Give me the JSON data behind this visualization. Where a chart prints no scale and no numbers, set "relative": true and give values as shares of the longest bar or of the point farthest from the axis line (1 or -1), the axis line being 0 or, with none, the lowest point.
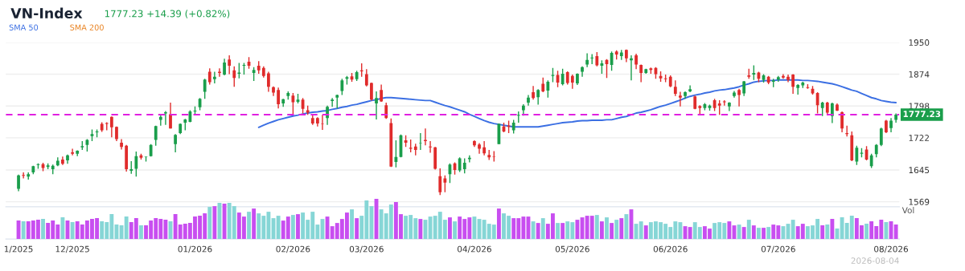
{
  "chart_data": [
    {
      "type": "candlestick",
      "title": "VN-Index",
      "subtitle": "1777.23 +14.39 (+0.82%)",
      "categories": [
        null,
        null,
        null,
        null,
        null,
        null,
        null,
        null,
        null,
        null,
        null,
        null,
        null,
        null,
        null,
        null,
        null,
        null,
        null,
        null,
        null,
        null,
        null,
        null,
        null,
        null,
        null,
        null,
        null,
        null,
        null,
        null,
        null,
        null,
        null,
        null,
        null,
        null,
        null,
        null,
        null,
        null,
        null,
        null,
        null,
        null,
        null,
        null,
        null,
        null,
        null,
        null,
        null,
        null,
        null,
        null,
        null,
        null,
        null,
        null,
        null,
        null,
        null,
        null,
        null,
        null,
        null,
        null,
        null,
        null,
        null,
        null,
        null,
        null,
        null,
        null,
        null,
        null,
        null,
        null,
        null,
        null,
        null,
        null,
        null,
        null,
        null,
        null,
        null,
        null,
        null,
        null,
        null,
        null,
        null,
        null,
        null,
        null,
        null,
        null,
        null,
        null,
        null,
        null,
        null,
        null,
        null,
        null,
        null,
        null,
        null,
        null,
        null,
        null,
        null,
        null,
        null,
        null,
        null,
        null,
        null,
        null,
        null,
        null,
        null,
        null,
        null,
        null,
        null,
        null,
        null,
        null,
        null,
        null,
        null,
        null,
        null,
        null,
        null,
        null,
        null,
        null,
        null,
        null,
        null,
        null,
        null,
        null,
        null,
        null,
        null,
        null,
        null,
        null,
        null,
        null,
        null,
        null,
        null,
        null,
        null,
        null,
        null,
        null,
        null,
        null,
        null,
        null,
        null,
        null,
        null,
        null,
        null,
        null,
        null,
        null,
        null,
        null,
        null,
        null
      ],
      "ohlc": [
        [
          1600,
          1634,
          1594,
          1632
        ],
        [
          1633,
          1639,
          1625,
          1631
        ],
        [
          1629,
          1639,
          1622,
          1635
        ],
        [
          1639,
          1655,
          1635,
          1654
        ],
        [
          1657,
          1661,
          1648,
          1659
        ],
        [
          1659,
          1662,
          1642,
          1650
        ],
        [
          1652,
          1661,
          1647,
          1656
        ],
        [
          1647,
          1658,
          1635,
          1655
        ],
        [
          1656,
          1675,
          1654,
          1667
        ],
        [
          1670,
          1677,
          1657,
          1660
        ],
        [
          1668,
          1682,
          1660,
          1680
        ],
        [
          1687,
          1696,
          1680,
          1684
        ],
        [
          1684,
          1692,
          1678,
          1691
        ],
        [
          1699,
          1714,
          1693,
          1702
        ],
        [
          1705,
          1719,
          1689,
          1717
        ],
        [
          1726,
          1742,
          1714,
          1731
        ],
        [
          1735,
          1742,
          1723,
          1737
        ],
        [
          1755,
          1759,
          1736,
          1740
        ],
        [
          1757,
          1759,
          1740,
          1755
        ],
        [
          1772,
          1773,
          1723,
          1747
        ],
        [
          1748,
          1749,
          1714,
          1719
        ],
        [
          1710,
          1719,
          1694,
          1700
        ],
        [
          1703,
          1705,
          1641,
          1647
        ],
        [
          1643,
          1666,
          1636,
          1647
        ],
        [
          1648,
          1689,
          1629,
          1678
        ],
        [
          1680,
          1684,
          1670,
          1674
        ],
        [
          1676,
          1677,
          1665,
          1677
        ],
        [
          1678,
          1707,
          1677,
          1705
        ],
        [
          1717,
          1751,
          1703,
          1750
        ],
        [
          1765,
          1778,
          1751,
          1772
        ],
        [
          1780,
          1786,
          1753,
          1783
        ],
        [
          1778,
          1806,
          1744,
          1744
        ],
        [
          1707,
          1731,
          1687,
          1729
        ],
        [
          1733,
          1756,
          1731,
          1755
        ],
        [
          1758,
          1767,
          1740,
          1766
        ],
        [
          1760,
          1788,
          1759,
          1785
        ],
        [
          1785,
          1797,
          1776,
          1787
        ],
        [
          1795,
          1817,
          1788,
          1815
        ],
        [
          1832,
          1863,
          1815,
          1861
        ],
        [
          1880,
          1888,
          1849,
          1855
        ],
        [
          1862,
          1880,
          1852,
          1868
        ],
        [
          1880,
          1888,
          1868,
          1877
        ],
        [
          1873,
          1911,
          1871,
          1902
        ],
        [
          1909,
          1919,
          1874,
          1894
        ],
        [
          1883,
          1893,
          1844,
          1865
        ],
        [
          1875,
          1901,
          1864,
          1878
        ],
        [
          1894,
          1901,
          1873,
          1896
        ],
        [
          1904,
          1915,
          1887,
          1894
        ],
        [
          1877,
          1891,
          1858,
          1884
        ],
        [
          1894,
          1905,
          1875,
          1883
        ],
        [
          1889,
          1893,
          1866,
          1870
        ],
        [
          1876,
          1880,
          1832,
          1844
        ],
        [
          1843,
          1845,
          1822,
          1830
        ],
        [
          1836,
          1842,
          1792,
          1802
        ],
        [
          1804,
          1815,
          1796,
          1814
        ],
        [
          1822,
          1833,
          1813,
          1829
        ],
        [
          1823,
          1829,
          1777,
          1807
        ],
        [
          1808,
          1827,
          1804,
          1813
        ],
        [
          1813,
          1817,
          1780,
          1791
        ],
        [
          1788,
          1799,
          1777,
          1782
        ],
        [
          1769,
          1777,
          1753,
          1756
        ],
        [
          1769,
          1771,
          1749,
          1756
        ],
        [
          1756,
          1777,
          1741,
          1755
        ],
        [
          1769,
          1799,
          1753,
          1796
        ],
        [
          1810,
          1817,
          1796,
          1813
        ],
        [
          1818,
          1825,
          1792,
          1824
        ],
        [
          1834,
          1863,
          1824,
          1859
        ],
        [
          1863,
          1870,
          1849,
          1867
        ],
        [
          1869,
          1877,
          1856,
          1861
        ],
        [
          1862,
          1882,
          1858,
          1879
        ],
        [
          1883,
          1900,
          1868,
          1881
        ],
        [
          1874,
          1886,
          1845,
          1847
        ],
        [
          1853,
          1854,
          1811,
          1813
        ],
        [
          1804,
          1833,
          1766,
          1817
        ],
        [
          1836,
          1849,
          1808,
          1809
        ],
        [
          1800,
          1806,
          1767,
          1769
        ],
        [
          1757,
          1768,
          1652,
          1653
        ],
        [
          1664,
          1716,
          1651,
          1676
        ],
        [
          1676,
          1730,
          1675,
          1728
        ],
        [
          1716,
          1728,
          1700,
          1710
        ],
        [
          1698,
          1718,
          1687,
          1696
        ],
        [
          1701,
          1708,
          1680,
          1693
        ],
        [
          1709,
          1733,
          1693,
          1710
        ],
        [
          1717,
          1744,
          1704,
          1714
        ],
        [
          1701,
          1714,
          1686,
          1699
        ],
        [
          1699,
          1700,
          1646,
          1648
        ],
        [
          1630,
          1649,
          1585,
          1592
        ],
        [
          1625,
          1632,
          1592,
          1615
        ],
        [
          1635,
          1661,
          1614,
          1658
        ],
        [
          1661,
          1663,
          1634,
          1645
        ],
        [
          1644,
          1675,
          1640,
          1673
        ],
        [
          1647,
          1673,
          1637,
          1662
        ],
        [
          1671,
          1680,
          1663,
          1674
        ],
        [
          1714,
          1716,
          1700,
          1704
        ],
        [
          1706,
          1709,
          1684,
          1696
        ],
        [
          1699,
          1714,
          1680,
          1685
        ],
        [
          1681,
          1693,
          1669,
          1675
        ],
        [
          1677,
          1690,
          1665,
          1676
        ],
        [
          1707,
          1756,
          1707,
          1755
        ],
        [
          1749,
          1758,
          1735,
          1737
        ],
        [
          1751,
          1763,
          1733,
          1748
        ],
        [
          1740,
          1765,
          1732,
          1758
        ],
        [
          1775,
          1785,
          1758,
          1777
        ],
        [
          1788,
          1802,
          1775,
          1799
        ],
        [
          1806,
          1824,
          1799,
          1818
        ],
        [
          1831,
          1846,
          1813,
          1817
        ],
        [
          1819,
          1838,
          1801,
          1836
        ],
        [
          1851,
          1866,
          1831,
          1833
        ],
        [
          1835,
          1859,
          1818,
          1856
        ],
        [
          1870,
          1889,
          1855,
          1872
        ],
        [
          1872,
          1882,
          1843,
          1854
        ],
        [
          1850,
          1887,
          1847,
          1875
        ],
        [
          1879,
          1881,
          1849,
          1853
        ],
        [
          1870,
          1873,
          1839,
          1854
        ],
        [
          1852,
          1876,
          1848,
          1875
        ],
        [
          1880,
          1893,
          1868,
          1891
        ],
        [
          1897,
          1924,
          1891,
          1908
        ],
        [
          1912,
          1922,
          1898,
          1914
        ],
        [
          1917,
          1927,
          1893,
          1895
        ],
        [
          1894,
          1907,
          1875,
          1900
        ],
        [
          1908,
          1910,
          1865,
          1898
        ],
        [
          1896,
          1928,
          1882,
          1925
        ],
        [
          1928,
          1931,
          1909,
          1921
        ],
        [
          1917,
          1932,
          1908,
          1926
        ],
        [
          1932,
          1933,
          1903,
          1912
        ],
        [
          1907,
          1919,
          1859,
          1912
        ],
        [
          1919,
          1923,
          1886,
          1897
        ],
        [
          1896,
          1897,
          1855,
          1877
        ],
        [
          1877,
          1887,
          1875,
          1886
        ],
        [
          1888,
          1890,
          1875,
          1884
        ],
        [
          1889,
          1891,
          1863,
          1874
        ],
        [
          1870,
          1881,
          1856,
          1864
        ],
        [
          1864,
          1873,
          1855,
          1862
        ],
        [
          1868,
          1871,
          1843,
          1845
        ],
        [
          1844,
          1859,
          1822,
          1827
        ],
        [
          1823,
          1832,
          1797,
          1818
        ],
        [
          1822,
          1833,
          1815,
          1831
        ],
        [
          1833,
          1847,
          1831,
          1838
        ],
        [
          1821,
          1823,
          1790,
          1791
        ],
        [
          1798,
          1800,
          1779,
          1793
        ],
        [
          1793,
          1805,
          1788,
          1802
        ],
        [
          1793,
          1801,
          1787,
          1799
        ],
        [
          1812,
          1815,
          1786,
          1793
        ],
        [
          1804,
          1812,
          1777,
          1799
        ],
        [
          1809,
          1812,
          1799,
          1807
        ],
        [
          1797,
          1807,
          1786,
          1806
        ],
        [
          1822,
          1834,
          1818,
          1830
        ],
        [
          1836,
          1839,
          1797,
          1824
        ],
        [
          1828,
          1858,
          1822,
          1857
        ],
        [
          1871,
          1887,
          1863,
          1868
        ],
        [
          1873,
          1895,
          1860,
          1877
        ],
        [
          1878,
          1880,
          1855,
          1863
        ],
        [
          1860,
          1874,
          1854,
          1871
        ],
        [
          1868,
          1870,
          1850,
          1854
        ],
        [
          1856,
          1863,
          1843,
          1859
        ],
        [
          1861,
          1870,
          1856,
          1867
        ],
        [
          1870,
          1874,
          1863,
          1866
        ],
        [
          1868,
          1873,
          1855,
          1860
        ],
        [
          1873,
          1874,
          1827,
          1844
        ],
        [
          1841,
          1850,
          1825,
          1848
        ],
        [
          1847,
          1856,
          1841,
          1854
        ],
        [
          1843,
          1850,
          1839,
          1841
        ],
        [
          1839,
          1846,
          1825,
          1828
        ],
        [
          1829,
          1831,
          1780,
          1800
        ],
        [
          1793,
          1808,
          1774,
          1806
        ],
        [
          1806,
          1808,
          1776,
          1782
        ],
        [
          1774,
          1806,
          1757,
          1804
        ],
        [
          1801,
          1804,
          1786,
          1787
        ],
        [
          1783,
          1785,
          1735,
          1744
        ],
        [
          1733,
          1751,
          1725,
          1731
        ],
        [
          1728,
          1737,
          1666,
          1668
        ],
        [
          1665,
          1703,
          1657,
          1698
        ],
        [
          1684,
          1697,
          1675,
          1686
        ],
        [
          1694,
          1702,
          1668,
          1670
        ],
        [
          1654,
          1684,
          1650,
          1680
        ],
        [
          1683,
          1707,
          1675,
          1705
        ],
        [
          1705,
          1746,
          1702,
          1744
        ],
        [
          1763,
          1765,
          1733,
          1735
        ],
        [
          1745,
          1769,
          1735,
          1762.84
        ],
        [
          1765,
          1780,
          1758,
          1777.23
        ]
      ],
      "colors": [
        "#1a9e4b",
        "#e02b2b",
        "#1a9e4b",
        "#1a9e4b",
        "#1a9e4b",
        "#e02b2b",
        "#1a9e4b",
        "#1a9e4b",
        "#1a9e4b",
        "#e02b2b",
        "#1a9e4b",
        "#e02b2b",
        "#1a9e4b",
        "#1a9e4b",
        "#1a9e4b",
        "#1a9e4b",
        "#1a9e4b",
        "#e02b2b",
        "#e02b2b",
        "#e02b2b",
        "#e02b2b",
        "#e02b2b",
        "#e02b2b",
        "#1a9e4b",
        "#1a9e4b",
        "#e02b2b",
        "#1a9e4b",
        "#1a9e4b",
        "#1a9e4b",
        "#1a9e4b",
        "#1a9e4b",
        "#e02b2b",
        "#1a9e4b",
        "#1a9e4b",
        "#1a9e4b",
        "#1a9e4b",
        "#1a9e4b",
        "#1a9e4b",
        "#1a9e4b",
        "#e02b2b",
        "#1a9e4b",
        "#e02b2b",
        "#1a9e4b",
        "#e02b2b",
        "#e02b2b",
        "#1a9e4b",
        "#1a9e4b",
        "#e02b2b",
        "#1a9e4b",
        "#e02b2b",
        "#e02b2b",
        "#e02b2b",
        "#e02b2b",
        "#e02b2b",
        "#1a9e4b",
        "#1a9e4b",
        "#e02b2b",
        "#1a9e4b",
        "#e02b2b",
        "#e02b2b",
        "#e02b2b",
        "#e02b2b",
        "#e02b2b",
        "#1a9e4b",
        "#1a9e4b",
        "#1a9e4b",
        "#1a9e4b",
        "#1a9e4b",
        "#e02b2b",
        "#1a9e4b",
        "#e02b2b",
        "#e02b2b",
        "#e02b2b",
        "#1a9e4b",
        "#e02b2b",
        "#e02b2b",
        "#e02b2b",
        "#1a9e4b",
        "#1a9e4b",
        "#e02b2b",
        "#e02b2b",
        "#e02b2b",
        "#1a9e4b",
        "#e02b2b",
        "#e02b2b",
        "#e02b2b",
        "#e02b2b",
        "#e02b2b",
        "#1a9e4b",
        "#e02b2b",
        "#1a9e4b",
        "#1a9e4b",
        "#1a9e4b",
        "#e02b2b",
        "#e02b2b",
        "#e02b2b",
        "#e02b2b",
        "#e02b2b",
        "#1a9e4b",
        "#e02b2b",
        "#e02b2b",
        "#1a9e4b",
        "#1a9e4b",
        "#1a9e4b",
        "#1a9e4b",
        "#e02b2b",
        "#1a9e4b",
        "#e02b2b",
        "#1a9e4b",
        "#1a9e4b",
        "#e02b2b",
        "#1a9e4b",
        "#e02b2b",
        "#e02b2b",
        "#1a9e4b",
        "#1a9e4b",
        "#1a9e4b",
        "#1a9e4b",
        "#e02b2b",
        "#1a9e4b",
        "#e02b2b",
        "#1a9e4b",
        "#e02b2b",
        "#1a9e4b",
        "#e02b2b",
        "#1a9e4b",
        "#e02b2b",
        "#e02b2b",
        "#1a9e4b",
        "#e02b2b",
        "#e02b2b",
        "#e02b2b",
        "#e02b2b",
        "#e02b2b",
        "#e02b2b",
        "#e02b2b",
        "#1a9e4b",
        "#1a9e4b",
        "#e02b2b",
        "#e02b2b",
        "#1a9e4b",
        "#1a9e4b",
        "#e02b2b",
        "#e02b2b",
        "#e02b2b",
        "#1a9e4b",
        "#1a9e4b",
        "#e02b2b",
        "#1a9e4b",
        "#e02b2b",
        "#1a9e4b",
        "#e02b2b",
        "#1a9e4b",
        "#e02b2b",
        "#1a9e4b",
        "#1a9e4b",
        "#e02b2b",
        "#e02b2b",
        "#e02b2b",
        "#1a9e4b",
        "#1a9e4b",
        "#e02b2b",
        "#e02b2b",
        "#e02b2b",
        "#1a9e4b",
        "#e02b2b",
        "#1a9e4b",
        "#e02b2b",
        "#e02b2b",
        "#e02b2b",
        "#e02b2b",
        "#1a9e4b",
        "#1a9e4b",
        "#e02b2b",
        "#1a9e4b",
        "#1a9e4b",
        "#1a9e4b",
        "#e02b2b",
        "#1a9e4b",
        "#1a9e4b"
      ],
      "series": [
        {
          "type": "line",
          "name": "SMA 50",
          "color": "#3b6fe3",
          "values": [
            null,
            null,
            null,
            null,
            null,
            null,
            null,
            null,
            null,
            null,
            null,
            null,
            null,
            null,
            null,
            null,
            null,
            null,
            null,
            null,
            null,
            null,
            null,
            null,
            null,
            null,
            null,
            null,
            null,
            null,
            null,
            null,
            null,
            null,
            null,
            null,
            null,
            null,
            null,
            null,
            null,
            null,
            null,
            null,
            null,
            null,
            null,
            null,
            null,
            1747,
            1752,
            1757,
            1761,
            1765,
            1768,
            1771,
            1774,
            1776,
            1779,
            1781,
            1783,
            1784,
            1786,
            1787,
            1790,
            1792,
            1795,
            1797,
            1800,
            1802,
            1805,
            1808,
            1811,
            1813,
            1816,
            1818,
            1818,
            1817,
            1816,
            1815,
            1814,
            1813,
            1812,
            1811,
            1811,
            1807,
            1803,
            1799,
            1796,
            1792,
            1788,
            1784,
            1778,
            1773,
            1768,
            1763,
            1759,
            1756,
            1754,
            1752,
            1750,
            1748,
            1748,
            1748,
            1748,
            1748,
            1748,
            1750,
            1752,
            1754,
            1756,
            1758,
            1759,
            1760,
            1762,
            1763,
            1763,
            1764,
            1764,
            1764,
            1765,
            1765,
            1768,
            1771,
            1773,
            1777,
            1781,
            1783,
            1786,
            1789,
            1793,
            1797,
            1800,
            1804,
            1808,
            1812,
            1817,
            1821,
            1824,
            1826,
            1829,
            1831,
            1834,
            1836,
            1837,
            1839,
            1841,
            1844,
            1848,
            1851,
            1855,
            1857,
            1858,
            1859,
            1859,
            1860,
            1860,
            1860,
            1860,
            1860,
            1859,
            1859,
            1858,
            1857,
            1855,
            1853,
            1851,
            1848,
            1844,
            1840,
            1836,
            1833,
            1828,
            1823,
            1818,
            1815,
            1811,
            1809,
            1807,
            1806
          ]
        },
        {
          "type": "line",
          "name": "SMA 200",
          "color": "#e8801e",
          "values": [
            null,
            null,
            null,
            null,
            null,
            null,
            null,
            null,
            null,
            null,
            null,
            null,
            null,
            null,
            null,
            null,
            null,
            null,
            null,
            null,
            null,
            null,
            null,
            null,
            null,
            null,
            null,
            null,
            null,
            null,
            null,
            null,
            null,
            null,
            null,
            null,
            null,
            null,
            null,
            null,
            null,
            null,
            null,
            null,
            null,
            null,
            null,
            null,
            null,
            null,
            null,
            null,
            null,
            null,
            null,
            null,
            null,
            null,
            null,
            null,
            null,
            null,
            null,
            null,
            null,
            null,
            null,
            null,
            null,
            null,
            null,
            null,
            null,
            null,
            null,
            null,
            null,
            null,
            null,
            null,
            null,
            null,
            null,
            null,
            null,
            null,
            null,
            null,
            null,
            null,
            null,
            null,
            null,
            null,
            null,
            null,
            null,
            null,
            null,
            null,
            null,
            null,
            null,
            null,
            null,
            null,
            null,
            null,
            null,
            null,
            null,
            null,
            null,
            null,
            null,
            null,
            null,
            null,
            null,
            null,
            null,
            null,
            null,
            null,
            null,
            null,
            null,
            null,
            null,
            null,
            null,
            null,
            null,
            null,
            null,
            null,
            null,
            null,
            null,
            null,
            null,
            null,
            null,
            null,
            null,
            null,
            null,
            null,
            null,
            null,
            null,
            null,
            null,
            null,
            null,
            null,
            null,
            null,
            null,
            null,
            null,
            null,
            null,
            null,
            null,
            null,
            null,
            null,
            null,
            null,
            null,
            null,
            null,
            null,
            null,
            null,
            null,
            null,
            null,
            null
          ]
        }
      ],
      "legend": "top left",
      "grid": "y",
      "tick_labels": "y",
      "ref_lines": [
        {
          "axis": "y",
          "value": 1777.23,
          "label": "1777.23",
          "color": "#e020e0",
          "line_style": "dashed"
        }
      ],
      "ylim": [
        1557,
        1950
      ],
      "yticks": [
        1569,
        1645,
        1722,
        1798,
        1874,
        1950
      ]
    },
    {
      "type": "bar",
      "relative": true,
      "ylabel": "Vol",
      "annotations": [
        "2026-08-04"
      ],
      "categories": [
        "1/2025",
        null,
        null,
        null,
        null,
        null,
        null,
        null,
        null,
        null,
        null,
        "12/2025",
        null,
        null,
        null,
        null,
        null,
        null,
        null,
        null,
        null,
        null,
        null,
        null,
        null,
        null,
        null,
        null,
        null,
        null,
        null,
        null,
        null,
        null,
        null,
        null,
        "01/2026",
        null,
        null,
        null,
        null,
        null,
        null,
        null,
        null,
        null,
        null,
        null,
        null,
        null,
        null,
        null,
        null,
        null,
        null,
        null,
        "02/2026",
        null,
        null,
        null,
        null,
        null,
        null,
        null,
        null,
        null,
        null,
        null,
        null,
        null,
        null,
        "03/2026",
        null,
        null,
        null,
        null,
        null,
        null,
        null,
        null,
        null,
        null,
        null,
        null,
        null,
        null,
        null,
        null,
        null,
        null,
        null,
        null,
        null,
        "04/2026",
        null,
        null,
        null,
        null,
        null,
        null,
        null,
        null,
        null,
        null,
        null,
        null,
        null,
        null,
        null,
        null,
        null,
        null,
        null,
        "05/2026",
        null,
        null,
        null,
        null,
        null,
        null,
        null,
        null,
        null,
        null,
        null,
        null,
        null,
        null,
        null,
        null,
        null,
        null,
        null,
        "06/2026",
        null,
        null,
        null,
        null,
        null,
        null,
        null,
        null,
        null,
        null,
        null,
        null,
        null,
        null,
        null,
        null,
        null,
        null,
        null,
        null,
        null,
        "07/2026",
        null,
        null,
        null,
        null,
        null,
        null,
        null,
        null,
        null,
        null,
        null,
        null,
        null,
        null,
        null,
        null,
        null,
        null,
        null,
        null,
        null,
        null,
        "08/2026",
        null
      ],
      "values": [
        0.46,
        0.44,
        0.44,
        0.46,
        0.48,
        0.5,
        0.4,
        0.46,
        0.36,
        0.54,
        0.46,
        0.42,
        0.44,
        0.36,
        0.46,
        0.5,
        0.52,
        0.44,
        0.42,
        0.62,
        0.36,
        0.34,
        0.56,
        0.42,
        0.52,
        0.34,
        0.34,
        0.46,
        0.52,
        0.5,
        0.48,
        0.44,
        0.62,
        0.36,
        0.38,
        0.4,
        0.56,
        0.58,
        0.64,
        0.8,
        0.82,
        0.9,
        0.88,
        0.9,
        0.82,
        0.66,
        0.56,
        0.68,
        0.76,
        0.64,
        0.58,
        0.68,
        0.52,
        0.58,
        0.46,
        0.56,
        0.6,
        0.62,
        0.66,
        0.48,
        0.68,
        0.36,
        0.5,
        0.56,
        0.32,
        0.4,
        0.5,
        0.66,
        0.74,
        0.52,
        0.58,
        0.96,
        0.82,
        1,
        0.74,
        0.64,
        0.86,
        0.92,
        0.62,
        0.58,
        0.6,
        0.52,
        0.5,
        0.48,
        0.56,
        0.58,
        0.68,
        0.48,
        0.54,
        0.44,
        0.56,
        0.5,
        0.54,
        0.56,
        0.5,
        0.48,
        0.38,
        0.36,
        0.76,
        0.64,
        0.58,
        0.52,
        0.52,
        0.56,
        0.56,
        0.44,
        0.4,
        0.52,
        0.38,
        0.64,
        0.4,
        0.4,
        0.44,
        0.42,
        0.48,
        0.54,
        0.58,
        0.58,
        0.6,
        0.44,
        0.54,
        0.4,
        0.48,
        0.52,
        0.62,
        0.74,
        0.38,
        0.44,
        0.34,
        0.42,
        0.44,
        0.42,
        0.38,
        0.3,
        0.44,
        0.42,
        0.32,
        0.3,
        0.42,
        0.3,
        0.32,
        0.26,
        0.4,
        0.42,
        0.4,
        0.44,
        0.34,
        0.36,
        0.3,
        0.48,
        0.34,
        0.28,
        0.28,
        0.3,
        0.36,
        0.34,
        0.32,
        0.38,
        0.48,
        0.32,
        0.38,
        0.32,
        0.34,
        0.5,
        0.34,
        0.36,
        0.5,
        0.26,
        0.54,
        0.4,
        0.58,
        0.52,
        0.34,
        0.38,
        0.44,
        0.32,
        0.48,
        0.42,
        0.44,
        0.36
      ],
      "colors": [
        "#c84ef0",
        "#86d6d6",
        "#c84ef0",
        "#c84ef0",
        "#c84ef0",
        "#86d6d6",
        "#c84ef0",
        "#c84ef0",
        "#c84ef0",
        "#86d6d6",
        "#c84ef0",
        "#86d6d6",
        "#c84ef0",
        "#c84ef0",
        "#c84ef0",
        "#c84ef0",
        "#c84ef0",
        "#86d6d6",
        "#86d6d6",
        "#86d6d6",
        "#86d6d6",
        "#86d6d6",
        "#86d6d6",
        "#c84ef0",
        "#c84ef0",
        "#86d6d6",
        "#c84ef0",
        "#c84ef0",
        "#c84ef0",
        "#c84ef0",
        "#c84ef0",
        "#86d6d6",
        "#c84ef0",
        "#c84ef0",
        "#c84ef0",
        "#c84ef0",
        "#c84ef0",
        "#c84ef0",
        "#c84ef0",
        "#86d6d6",
        "#c84ef0",
        "#86d6d6",
        "#c84ef0",
        "#86d6d6",
        "#86d6d6",
        "#c84ef0",
        "#c84ef0",
        "#86d6d6",
        "#c84ef0",
        "#86d6d6",
        "#86d6d6",
        "#86d6d6",
        "#86d6d6",
        "#86d6d6",
        "#c84ef0",
        "#c84ef0",
        "#86d6d6",
        "#c84ef0",
        "#86d6d6",
        "#86d6d6",
        "#86d6d6",
        "#86d6d6",
        "#86d6d6",
        "#c84ef0",
        "#c84ef0",
        "#c84ef0",
        "#c84ef0",
        "#c84ef0",
        "#86d6d6",
        "#c84ef0",
        "#86d6d6",
        "#86d6d6",
        "#86d6d6",
        "#c84ef0",
        "#86d6d6",
        "#86d6d6",
        "#86d6d6",
        "#c84ef0",
        "#c84ef0",
        "#86d6d6",
        "#86d6d6",
        "#86d6d6",
        "#c84ef0",
        "#86d6d6",
        "#86d6d6",
        "#86d6d6",
        "#86d6d6",
        "#86d6d6",
        "#c84ef0",
        "#86d6d6",
        "#c84ef0",
        "#c84ef0",
        "#c84ef0",
        "#86d6d6",
        "#86d6d6",
        "#86d6d6",
        "#86d6d6",
        "#86d6d6",
        "#c84ef0",
        "#86d6d6",
        "#86d6d6",
        "#c84ef0",
        "#c84ef0",
        "#c84ef0",
        "#c84ef0",
        "#86d6d6",
        "#c84ef0",
        "#86d6d6",
        "#c84ef0",
        "#c84ef0",
        "#86d6d6",
        "#c84ef0",
        "#86d6d6",
        "#86d6d6",
        "#c84ef0",
        "#c84ef0",
        "#c84ef0",
        "#c84ef0",
        "#86d6d6",
        "#c84ef0",
        "#86d6d6",
        "#c84ef0",
        "#86d6d6",
        "#c84ef0",
        "#86d6d6",
        "#c84ef0",
        "#86d6d6",
        "#86d6d6",
        "#c84ef0",
        "#86d6d6",
        "#86d6d6",
        "#86d6d6",
        "#86d6d6",
        "#86d6d6",
        "#86d6d6",
        "#86d6d6",
        "#c84ef0",
        "#c84ef0",
        "#86d6d6",
        "#86d6d6",
        "#c84ef0",
        "#c84ef0",
        "#86d6d6",
        "#86d6d6",
        "#86d6d6",
        "#c84ef0",
        "#c84ef0",
        "#86d6d6",
        "#c84ef0",
        "#86d6d6",
        "#c84ef0",
        "#86d6d6",
        "#c84ef0",
        "#86d6d6",
        "#c84ef0",
        "#c84ef0",
        "#86d6d6",
        "#86d6d6",
        "#86d6d6",
        "#c84ef0",
        "#c84ef0",
        "#86d6d6",
        "#86d6d6",
        "#86d6d6",
        "#c84ef0",
        "#86d6d6",
        "#c84ef0",
        "#86d6d6",
        "#86d6d6",
        "#86d6d6",
        "#86d6d6",
        "#c84ef0",
        "#c84ef0",
        "#86d6d6",
        "#c84ef0",
        "#c84ef0",
        "#c84ef0",
        "#86d6d6",
        "#c84ef0",
        "#c84ef0"
      ],
      "tick_labels": "x"
    }
  ]
}
